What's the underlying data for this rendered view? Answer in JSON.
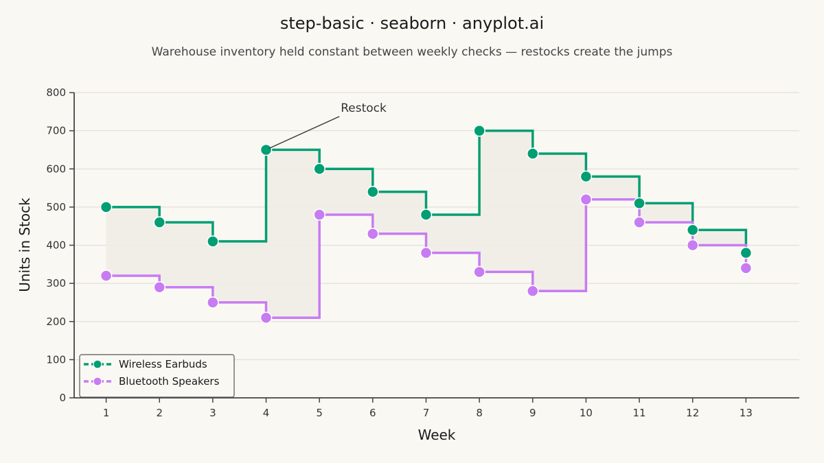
{
  "chart_data": {
    "type": "line",
    "subtype": "step-post",
    "title": "step-basic · seaborn · anyplot.ai",
    "subtitle": "Warehouse inventory held constant between weekly checks — restocks create the jumps",
    "xlabel": "Week",
    "ylabel": "Units in Stock",
    "x": [
      1,
      2,
      3,
      4,
      5,
      6,
      7,
      8,
      9,
      10,
      11,
      12,
      13
    ],
    "xlim": [
      0.4,
      14.0
    ],
    "ylim": [
      0,
      800
    ],
    "yticks": [
      0,
      100,
      200,
      300,
      400,
      500,
      600,
      700,
      800
    ],
    "xticks": [
      1,
      2,
      3,
      4,
      5,
      6,
      7,
      8,
      9,
      10,
      11,
      12,
      13
    ],
    "grid": "horizontal",
    "fill_between_series": true,
    "legend_position": "lower-left",
    "series": [
      {
        "name": "Wireless Earbuds",
        "color": "#009E73",
        "values": [
          500,
          460,
          410,
          650,
          600,
          540,
          480,
          700,
          640,
          580,
          510,
          440,
          380
        ]
      },
      {
        "name": "Bluetooth Speakers",
        "color": "#C77CF2",
        "values": [
          320,
          290,
          250,
          210,
          480,
          430,
          380,
          330,
          280,
          520,
          460,
          400,
          340
        ]
      }
    ],
    "annotations": [
      {
        "text": "Restock",
        "x": 4,
        "y": 650,
        "text_x": 5.4,
        "text_y": 750
      }
    ],
    "colors": {
      "background": "#FAF8F3",
      "fill": "#EFECE6",
      "grid": "#DDDAD3",
      "axis": "#444444"
    }
  }
}
